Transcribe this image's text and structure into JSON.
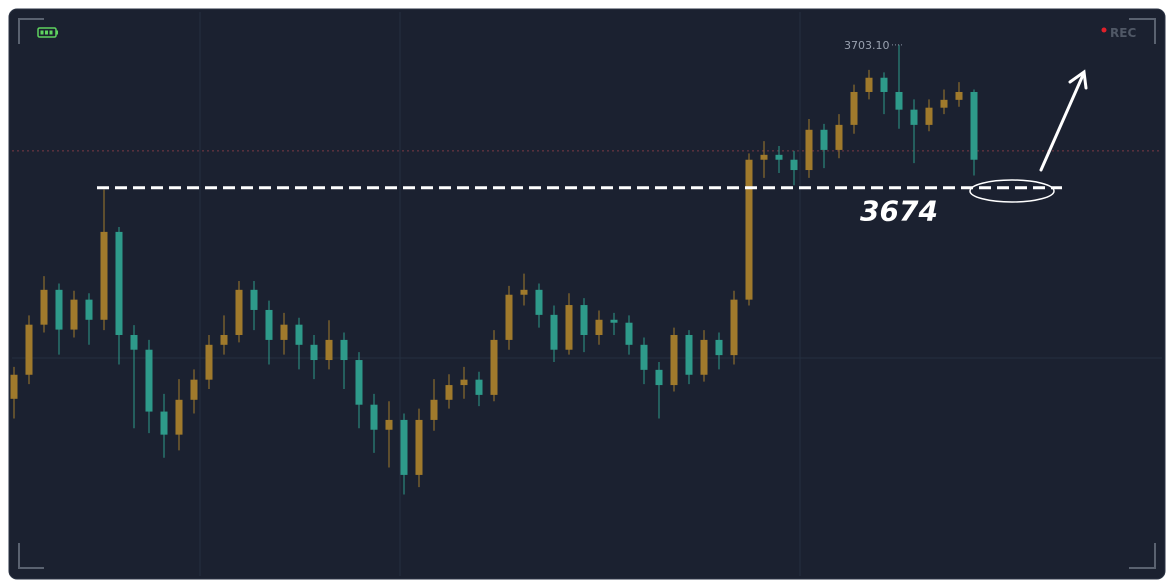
{
  "chart_data": {
    "type": "candlestick",
    "status_text": "REC",
    "up_color": "#a07a2c",
    "down_color": "#2e9a8a",
    "ylim": [
      3594.5,
      3710.2
    ],
    "open": [
      3631.0,
      3635.9,
      3646.1,
      3653.2,
      3645.1,
      3651.2,
      3647.1,
      3665.0,
      3644.0,
      3641.0,
      3628.4,
      3623.7,
      3630.8,
      3634.9,
      3642.0,
      3644.0,
      3653.2,
      3649.1,
      3643.0,
      3646.1,
      3642.0,
      3638.9,
      3643.0,
      3638.9,
      3629.8,
      3624.7,
      3626.7,
      3615.5,
      3626.7,
      3630.8,
      3633.8,
      3634.9,
      3631.8,
      3643.0,
      3652.2,
      3653.2,
      3648.1,
      3641.0,
      3650.1,
      3644.0,
      3647.1,
      3646.5,
      3642.0,
      3636.9,
      3633.8,
      3644.0,
      3635.9,
      3643.0,
      3639.9,
      3651.2,
      3679.7,
      3680.7,
      3679.7,
      3677.6,
      3685.8,
      3681.7,
      3686.8,
      3693.5,
      3696.4,
      3693.5,
      3689.9,
      3686.8,
      3690.3,
      3691.9,
      3693.5
    ],
    "high": [
      3637.5,
      3648.0,
      3656.0,
      3654.5,
      3653.0,
      3652.5,
      3673.6,
      3666.0,
      3646.0,
      3643.0,
      3632.0,
      3635.0,
      3637.0,
      3644.0,
      3648.0,
      3655.0,
      3655.0,
      3651.0,
      3648.5,
      3647.5,
      3644.0,
      3647.0,
      3644.5,
      3640.5,
      3632.0,
      3630.5,
      3628.0,
      3629.0,
      3635.0,
      3636.0,
      3637.5,
      3636.5,
      3645.0,
      3654.0,
      3656.5,
      3654.5,
      3650.0,
      3652.5,
      3651.5,
      3649.0,
      3648.5,
      3648.0,
      3643.5,
      3638.5,
      3645.5,
      3645.0,
      3645.0,
      3644.5,
      3653.0,
      3681.0,
      3683.5,
      3682.5,
      3681.5,
      3688.0,
      3687.0,
      3689.0,
      3695.0,
      3698.0,
      3697.5,
      3703.1,
      3692.0,
      3692.0,
      3694.0,
      3695.5,
      3694.0
    ],
    "low": [
      3627.0,
      3634.0,
      3644.5,
      3640.0,
      3643.5,
      3642.0,
      3645.0,
      3638.0,
      3625.0,
      3624.0,
      3619.0,
      3620.5,
      3628.0,
      3633.0,
      3640.0,
      3642.5,
      3645.0,
      3638.0,
      3640.0,
      3637.0,
      3635.0,
      3637.0,
      3633.0,
      3625.0,
      3620.0,
      3617.0,
      3611.5,
      3613.0,
      3624.5,
      3629.0,
      3631.0,
      3629.5,
      3630.5,
      3641.0,
      3650.0,
      3645.5,
      3638.5,
      3640.0,
      3640.5,
      3642.0,
      3644.0,
      3640.0,
      3634.0,
      3627.0,
      3632.5,
      3634.0,
      3634.5,
      3637.0,
      3638.0,
      3650.0,
      3676.0,
      3677.0,
      3674.5,
      3676.0,
      3678.0,
      3680.0,
      3685.0,
      3692.0,
      3689.0,
      3686.0,
      3679.0,
      3685.5,
      3689.0,
      3690.5,
      3676.5
    ],
    "close": [
      3635.9,
      3646.1,
      3653.2,
      3645.1,
      3651.2,
      3647.1,
      3665.0,
      3644.0,
      3641.0,
      3628.4,
      3623.7,
      3630.8,
      3634.9,
      3642.0,
      3644.0,
      3653.2,
      3649.1,
      3643.0,
      3646.1,
      3642.0,
      3638.9,
      3643.0,
      3638.9,
      3629.8,
      3624.7,
      3626.7,
      3615.5,
      3626.7,
      3630.8,
      3633.8,
      3634.9,
      3631.8,
      3643.0,
      3652.2,
      3653.2,
      3648.1,
      3641.0,
      3650.1,
      3644.0,
      3647.1,
      3646.5,
      3642.0,
      3636.9,
      3633.8,
      3644.0,
      3635.9,
      3643.0,
      3639.9,
      3651.2,
      3679.7,
      3680.7,
      3679.7,
      3677.6,
      3685.8,
      3681.7,
      3686.8,
      3693.5,
      3696.4,
      3693.5,
      3689.9,
      3686.8,
      3690.3,
      3691.9,
      3693.5,
      3679.7
    ],
    "max_high": {
      "value": 3703.1,
      "label": "3703.10"
    },
    "level": 3674,
    "reference_line": 3681.5
  }
}
